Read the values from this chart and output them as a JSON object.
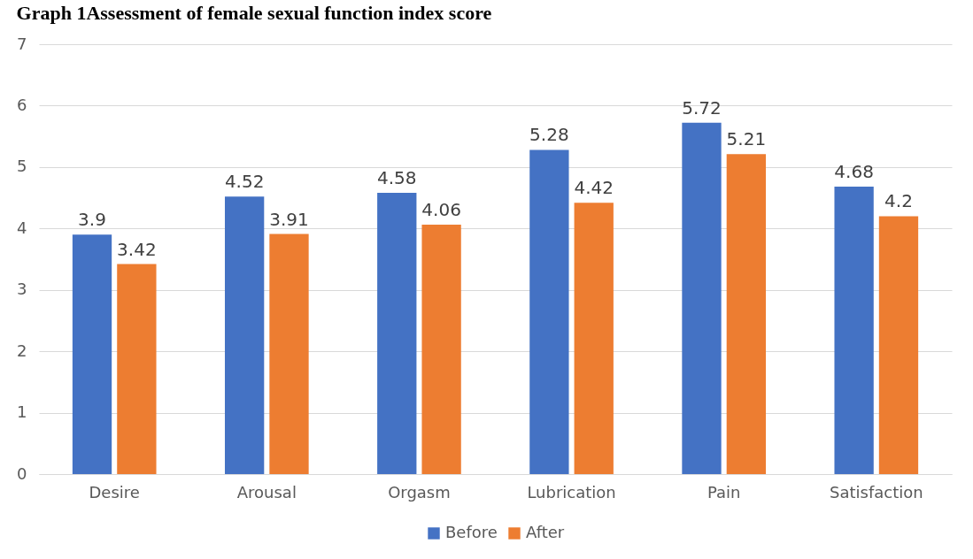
{
  "chart_data": {
    "type": "bar",
    "title": "Graph 1Assessment of female sexual function index score",
    "categories": [
      "Desire",
      "Arousal",
      "Orgasm",
      "Lubrication",
      "Pain",
      "Satisfaction"
    ],
    "series": [
      {
        "name": "Before",
        "color": "#4472c4",
        "values": [
          3.9,
          4.52,
          4.58,
          5.28,
          5.72,
          4.68
        ]
      },
      {
        "name": "After",
        "color": "#ed7d31",
        "values": [
          3.42,
          3.91,
          4.06,
          4.42,
          5.21,
          4.2
        ]
      }
    ],
    "ylim": [
      0,
      7
    ],
    "yticks": [
      0,
      1,
      2,
      3,
      4,
      5,
      6,
      7
    ],
    "grid": "y",
    "legend": "bottom",
    "data_labels": true
  }
}
